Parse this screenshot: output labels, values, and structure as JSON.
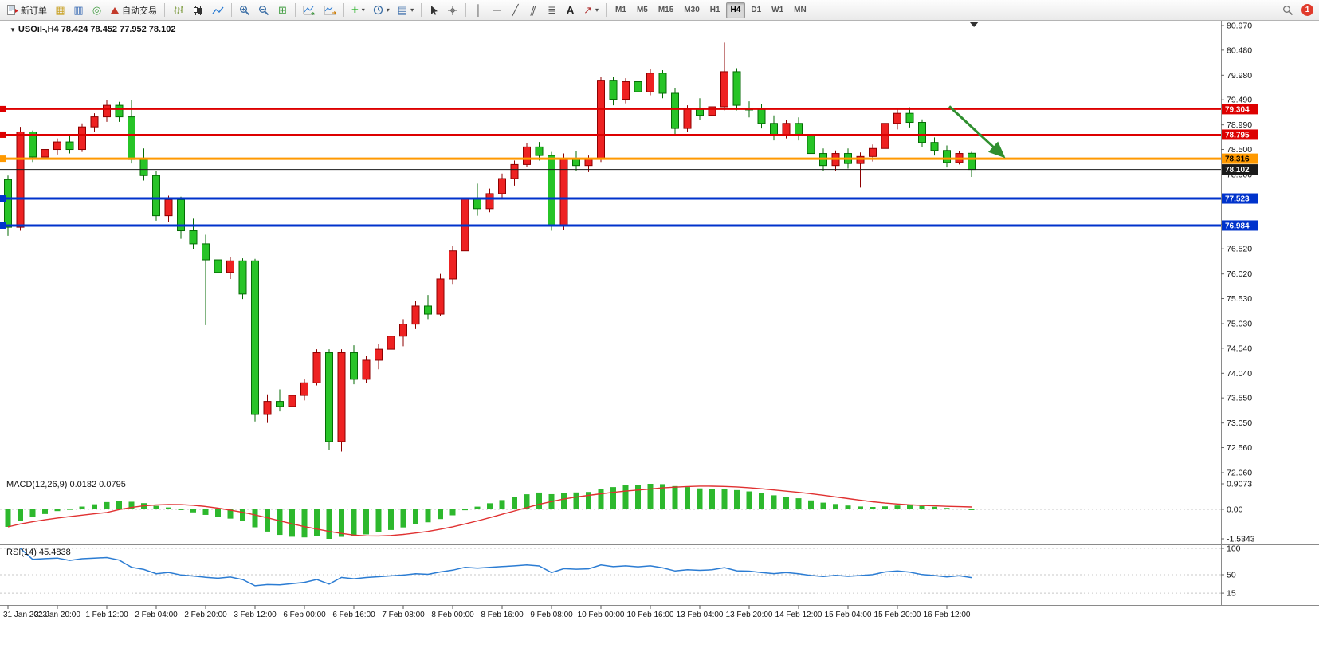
{
  "toolbar": {
    "new_order_label": "新订单",
    "auto_trading_label": "自动交易",
    "text_tool_label": "A",
    "vline_glyph": "│",
    "hline_glyph": "─",
    "trendline_glyph": "╱",
    "channel_glyph": "∥",
    "fibo_glyph": "≣",
    "arrows_glyph": "↗",
    "symbols_glyph": "▦",
    "market_watch_glyph": "▥",
    "navigator_glyph": "◎",
    "tile_glyph": "⊞",
    "templates_glyph": "▤",
    "indicators_glyph": "+",
    "timeframes": [
      "M1",
      "M5",
      "M15",
      "M30",
      "H1",
      "H4",
      "D1",
      "W1",
      "MN"
    ],
    "active_timeframe": "H4",
    "notification_count": "1"
  },
  "chart_data": {
    "type": "candlestick",
    "symbol": "USOil",
    "timeframe": "H4",
    "title": "USOil-,H4 78.424 78.452 77.952 78.102",
    "last_candle": {
      "open": 78.424,
      "high": 78.452,
      "low": 77.952,
      "close": 78.102
    },
    "y_axis": {
      "min": 72.06,
      "max": 80.97,
      "ticks": [
        "80.970",
        "80.480",
        "79.980",
        "79.490",
        "78.990",
        "78.500",
        "78.000",
        "77.510",
        "77.010",
        "76.520",
        "76.020",
        "75.530",
        "75.030",
        "74.540",
        "74.040",
        "73.550",
        "73.050",
        "72.560",
        "72.060"
      ]
    },
    "time_labels": [
      "31 Jan 2023",
      "31 Jan 20:00",
      "1 Feb 12:00",
      "2 Feb 04:00",
      "2 Feb 20:00",
      "3 Feb 12:00",
      "6 Feb 00:00",
      "6 Feb 16:00",
      "7 Feb 08:00",
      "8 Feb 00:00",
      "8 Feb 16:00",
      "9 Feb 08:00",
      "10 Feb 00:00",
      "10 Feb 16:00",
      "13 Feb 04:00",
      "13 Feb 20:00",
      "14 Feb 12:00",
      "15 Feb 04:00",
      "15 Feb 20:00",
      "16 Feb 12:00"
    ],
    "label_every_n_bars": 4,
    "ohlc": [
      [
        77.9,
        77.98,
        76.78,
        76.95
      ],
      [
        76.95,
        78.95,
        76.88,
        78.85
      ],
      [
        78.85,
        78.88,
        78.25,
        78.35
      ],
      [
        78.35,
        78.55,
        78.28,
        78.5
      ],
      [
        78.5,
        78.72,
        78.4,
        78.65
      ],
      [
        78.65,
        78.78,
        78.42,
        78.5
      ],
      [
        78.5,
        79.02,
        78.45,
        78.95
      ],
      [
        78.95,
        79.22,
        78.85,
        79.15
      ],
      [
        79.15,
        79.49,
        79.05,
        79.38
      ],
      [
        79.38,
        79.45,
        79.05,
        79.15
      ],
      [
        79.15,
        79.48,
        78.22,
        78.3
      ],
      [
        78.3,
        78.52,
        77.88,
        77.98
      ],
      [
        77.98,
        78.08,
        77.08,
        77.18
      ],
      [
        77.18,
        77.58,
        77.05,
        77.5
      ],
      [
        77.5,
        77.56,
        76.72,
        76.88
      ],
      [
        76.88,
        77.12,
        76.52,
        76.62
      ],
      [
        76.62,
        76.8,
        75.0,
        76.3
      ],
      [
        76.3,
        76.45,
        75.95,
        76.05
      ],
      [
        76.05,
        76.35,
        75.92,
        76.28
      ],
      [
        76.28,
        76.33,
        75.52,
        75.62
      ],
      [
        76.28,
        76.32,
        73.08,
        73.22
      ],
      [
        73.22,
        73.62,
        73.05,
        73.48
      ],
      [
        73.48,
        73.72,
        73.28,
        73.38
      ],
      [
        73.38,
        73.68,
        73.25,
        73.6
      ],
      [
        73.6,
        73.92,
        73.5,
        73.85
      ],
      [
        73.85,
        74.52,
        73.8,
        74.45
      ],
      [
        74.45,
        74.52,
        72.52,
        72.68
      ],
      [
        72.68,
        74.52,
        72.48,
        74.45
      ],
      [
        74.45,
        74.6,
        73.82,
        73.92
      ],
      [
        73.92,
        74.38,
        73.85,
        74.3
      ],
      [
        74.3,
        74.62,
        74.12,
        74.52
      ],
      [
        74.52,
        74.88,
        74.35,
        74.78
      ],
      [
        74.78,
        75.12,
        74.58,
        75.02
      ],
      [
        75.02,
        75.48,
        74.92,
        75.38
      ],
      [
        75.38,
        75.6,
        75.12,
        75.22
      ],
      [
        75.22,
        76.02,
        75.18,
        75.92
      ],
      [
        75.92,
        76.58,
        75.82,
        76.48
      ],
      [
        76.48,
        77.62,
        76.4,
        77.52
      ],
      [
        77.52,
        77.82,
        77.18,
        77.32
      ],
      [
        77.32,
        77.72,
        77.25,
        77.62
      ],
      [
        77.62,
        78.02,
        77.52,
        77.92
      ],
      [
        77.92,
        78.28,
        77.78,
        78.2
      ],
      [
        78.2,
        78.62,
        78.15,
        78.55
      ],
      [
        78.55,
        78.65,
        78.28,
        78.38
      ],
      [
        78.38,
        78.45,
        76.88,
        76.98
      ],
      [
        76.98,
        78.42,
        76.9,
        78.32
      ],
      [
        78.32,
        78.46,
        78.08,
        78.18
      ],
      [
        78.18,
        78.38,
        78.05,
        78.32
      ],
      [
        78.32,
        79.95,
        78.25,
        79.88
      ],
      [
        79.88,
        79.95,
        79.38,
        79.5
      ],
      [
        79.5,
        79.92,
        79.42,
        79.85
      ],
      [
        79.85,
        80.08,
        79.55,
        79.65
      ],
      [
        79.65,
        80.1,
        79.58,
        80.02
      ],
      [
        80.02,
        80.08,
        79.52,
        79.62
      ],
      [
        79.62,
        79.72,
        78.78,
        78.92
      ],
      [
        78.92,
        79.38,
        78.85,
        79.32
      ],
      [
        79.32,
        79.52,
        79.08,
        79.18
      ],
      [
        79.18,
        79.42,
        78.95,
        79.35
      ],
      [
        79.35,
        80.63,
        79.28,
        80.05
      ],
      [
        80.05,
        80.12,
        79.28,
        79.38
      ],
      [
        79.31,
        79.46,
        79.14,
        79.3
      ],
      [
        79.3,
        79.4,
        78.92,
        79.02
      ],
      [
        79.02,
        79.18,
        78.68,
        78.78
      ],
      [
        78.78,
        79.08,
        78.72,
        79.02
      ],
      [
        79.02,
        79.14,
        78.68,
        78.78
      ],
      [
        78.78,
        78.94,
        78.32,
        78.42
      ],
      [
        78.42,
        78.52,
        78.08,
        78.18
      ],
      [
        78.18,
        78.48,
        78.08,
        78.42
      ],
      [
        78.42,
        78.52,
        78.12,
        78.22
      ],
      [
        78.22,
        78.44,
        77.74,
        78.36
      ],
      [
        78.36,
        78.6,
        78.26,
        78.52
      ],
      [
        78.52,
        79.1,
        78.46,
        79.02
      ],
      [
        79.02,
        79.3,
        78.9,
        79.22
      ],
      [
        79.22,
        79.34,
        78.94,
        79.04
      ],
      [
        79.04,
        79.1,
        78.54,
        78.64
      ],
      [
        78.64,
        78.74,
        78.38,
        78.48
      ],
      [
        78.48,
        78.58,
        78.14,
        78.24
      ],
      [
        78.24,
        78.46,
        78.2,
        78.42
      ],
      [
        78.424,
        78.452,
        77.952,
        78.102
      ]
    ],
    "hlines": [
      {
        "price": 79.304,
        "label": "79.304",
        "color": "#dd0000",
        "width": 2,
        "text": "#ffffff"
      },
      {
        "price": 78.795,
        "label": "78.795",
        "color": "#dd0000",
        "width": 2,
        "text": "#ffffff"
      },
      {
        "price": 78.316,
        "label": "78.316",
        "color": "#ff9900",
        "width": 3,
        "text": "#000000"
      },
      {
        "price": 77.523,
        "label": "77.523",
        "color": "#0033cc",
        "width": 3,
        "text": "#ffffff"
      },
      {
        "price": 76.984,
        "label": "76.984",
        "color": "#0033cc",
        "width": 3,
        "text": "#ffffff"
      }
    ],
    "current_price": {
      "price": 78.102,
      "label": "78.102",
      "color": "#1a1a1a",
      "text": "#ffffff"
    },
    "colors": {
      "bull": "#ee2222",
      "bull_edge": "#8e0000",
      "bear": "#27c427",
      "bear_edge": "#046b04",
      "background": "#ffffff",
      "axis_text": "#111111",
      "macd_histogram": "#2db82d",
      "macd_signal": "#e03131",
      "rsi_line": "#2b7cd3"
    },
    "annotation_arrow": {
      "from_bar": 76.2,
      "from_price": 79.36,
      "to_bar": 80.6,
      "to_price": 78.36,
      "color": "#2f8f2f"
    },
    "shift_marker_bar": 78.2,
    "macd": {
      "label": "MACD(12,26,9) 0.0182 0.0795",
      "fast": 12,
      "slow": 26,
      "signal": 9,
      "current_values": [
        0.0182,
        0.0795
      ],
      "scale_labels": [
        "0.9073",
        "0.00",
        "-1.5343"
      ]
    },
    "rsi": {
      "label": "RSI(14) 45.4838",
      "period": 14,
      "current_value": 45.4838,
      "scale_labels": [
        "100",
        "50",
        "15"
      ],
      "scale_levels": [
        100,
        50,
        15
      ]
    }
  }
}
